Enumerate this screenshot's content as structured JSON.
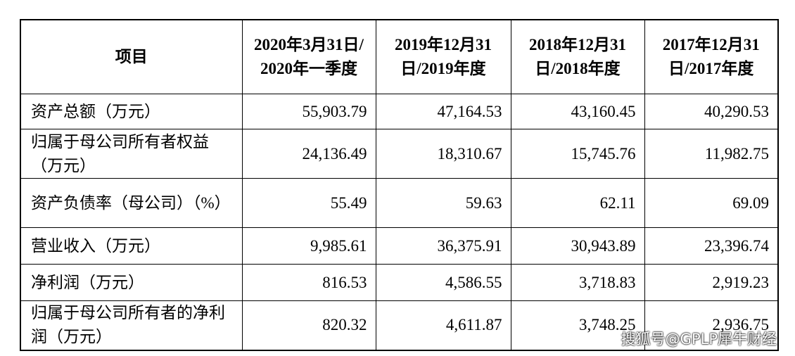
{
  "table": {
    "header": [
      "项目",
      "2020年3月31日/2020年一季度",
      "2019年12月31日/2019年度",
      "2018年12月31日/2018年度",
      "2017年12月31日/2017年度"
    ],
    "rows": [
      [
        "资产总额（万元）",
        "55,903.79",
        "47,164.53",
        "43,160.45",
        "40,290.53"
      ],
      [
        "归属于母公司所有者权益（万元）",
        "24,136.49",
        "18,310.67",
        "15,745.76",
        "11,982.75"
      ],
      [
        "资产负债率（母公司）（%）",
        "55.49",
        "59.63",
        "62.11",
        "69.09"
      ],
      [
        "营业收入（万元）",
        "9,985.61",
        "36,375.91",
        "30,943.89",
        "23,396.74"
      ],
      [
        "净利润（万元）",
        "816.53",
        "4,586.55",
        "3,718.83",
        "2,919.23"
      ],
      [
        "归属于母公司所有者的净利润（万元）",
        "820.32",
        "4,611.87",
        "3,748.25",
        "2,936.75"
      ]
    ]
  },
  "watermark": "搜狐号@GPLP犀牛财经"
}
